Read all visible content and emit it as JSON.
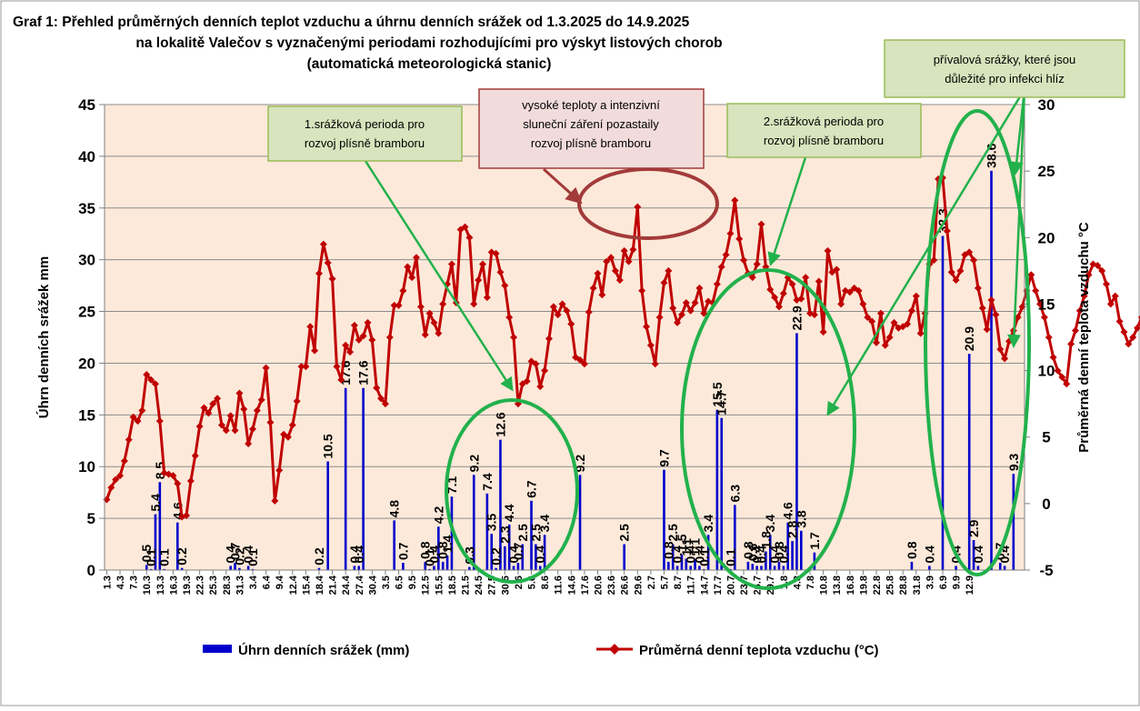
{
  "title_lines": [
    "Graf 1: Přehled průměrných denních teplot vzduchu a úhrnu denních srážek od 1.3.2025 do 14.9.2025",
    "na lokalitě Valečov s vyznačenými periodami rozhodujícími pro výskyt listových chorob",
    "(automatická meteorologická stanic)"
  ],
  "chart_data": {
    "type": "bar+line",
    "y_left": {
      "label": "Úhrn denních srážek mm",
      "min": 0,
      "max": 45,
      "ticks": [
        0,
        5,
        10,
        15,
        20,
        25,
        30,
        35,
        40,
        45
      ]
    },
    "y_right": {
      "label": "Průměrná denní teplota vzduchu °C",
      "min": -5,
      "max": 30,
      "ticks": [
        -5,
        0,
        5,
        10,
        15,
        20,
        25,
        30
      ]
    },
    "x_tick_labels": [
      "1.3",
      "4.3",
      "7.3",
      "10.3",
      "13.3",
      "16.3",
      "19.3",
      "22.3",
      "25.3",
      "28.3",
      "31.3",
      "3.4",
      "6.4",
      "9.4",
      "12.4",
      "15.4",
      "18.4",
      "21.4",
      "24.4",
      "27.4",
      "30.4",
      "3.5",
      "6.5",
      "9.5",
      "12.5",
      "15.5",
      "18.5",
      "21.5",
      "24.5",
      "27.5",
      "30.5",
      "2.6",
      "5.6",
      "8.6",
      "11.6",
      "14.6",
      "17.6",
      "20.6",
      "23.6",
      "26.6",
      "29.6",
      "2.7",
      "5.7",
      "8.7",
      "11.7",
      "14.7",
      "17.7",
      "20.7",
      "23.7",
      "26.7",
      "29.7",
      "1.8",
      "4.8",
      "7.8",
      "10.8",
      "13.8",
      "16.8",
      "19.8",
      "22.8",
      "25.8",
      "28.8",
      "31.8",
      "3.9",
      "6.9",
      "9.9",
      "12.9"
    ],
    "series": [
      {
        "name": "Úhrn denních srážek (mm)",
        "kind": "bar",
        "axis": "left",
        "color": "#0000CC",
        "points": [
          [
            9,
            0.5
          ],
          [
            10,
            0.1
          ],
          [
            11,
            5.4
          ],
          [
            12,
            8.5
          ],
          [
            13,
            0.1
          ],
          [
            16,
            4.6
          ],
          [
            17,
            0.2
          ],
          [
            28,
            0.4
          ],
          [
            29,
            0.7
          ],
          [
            30,
            0.2
          ],
          [
            32,
            0.4
          ],
          [
            33,
            0.1
          ],
          [
            48,
            0.2
          ],
          [
            50,
            10.5
          ],
          [
            54,
            17.6
          ],
          [
            56,
            0.4
          ],
          [
            57,
            0.4
          ],
          [
            58,
            17.6
          ],
          [
            65,
            4.8
          ],
          [
            67,
            0.7
          ],
          [
            72,
            0.8
          ],
          [
            73,
            0.1
          ],
          [
            74,
            0.4
          ],
          [
            75,
            4.2
          ],
          [
            76,
            0.8
          ],
          [
            77,
            1.4
          ],
          [
            78,
            7.1
          ],
          [
            82,
            0.3
          ],
          [
            83,
            9.2
          ],
          [
            86,
            7.4
          ],
          [
            87,
            3.5
          ],
          [
            88,
            0.2
          ],
          [
            89,
            12.6
          ],
          [
            90,
            2.3
          ],
          [
            91,
            4.4
          ],
          [
            92,
            0.4
          ],
          [
            93,
            0.7
          ],
          [
            94,
            2.5
          ],
          [
            96,
            6.7
          ],
          [
            97,
            2.5
          ],
          [
            98,
            0.4
          ],
          [
            99,
            3.4
          ],
          [
            107,
            9.2
          ],
          [
            117,
            2.5
          ],
          [
            126,
            9.7
          ],
          [
            127,
            0.8
          ],
          [
            128,
            2.5
          ],
          [
            129,
            0.4
          ],
          [
            130,
            1.5
          ],
          [
            131,
            1.1
          ],
          [
            132,
            0.4
          ],
          [
            133,
            1.1
          ],
          [
            134,
            0.4
          ],
          [
            135,
            0.1
          ],
          [
            136,
            3.4
          ],
          [
            138,
            15.5
          ],
          [
            139,
            14.7
          ],
          [
            141,
            0.1
          ],
          [
            142,
            6.3
          ],
          [
            145,
            0.8
          ],
          [
            146,
            0.6
          ],
          [
            147,
            0.4
          ],
          [
            148,
            0.4
          ],
          [
            149,
            1.8
          ],
          [
            150,
            3.4
          ],
          [
            151,
            0.4
          ],
          [
            152,
            0.8
          ],
          [
            153,
            0.4
          ],
          [
            154,
            4.6
          ],
          [
            155,
            2.8
          ],
          [
            156,
            22.9
          ],
          [
            157,
            3.8
          ],
          [
            160,
            1.7
          ],
          [
            182,
            0.8
          ],
          [
            186,
            0.4
          ],
          [
            189,
            32.3
          ],
          [
            192,
            0.4
          ],
          [
            195,
            20.9
          ],
          [
            196,
            2.9
          ],
          [
            197,
            0.4
          ],
          [
            200,
            38.6
          ],
          [
            202,
            0.7
          ],
          [
            203,
            0.4
          ],
          [
            205,
            9.3
          ]
        ]
      },
      {
        "name": "Průměrná denní teplota vzduchu (°C)",
        "kind": "line",
        "axis": "right",
        "color": "#C00000",
        "marker": "diamond",
        "values": [
          0.3,
          1.2,
          1.8,
          2.1,
          3.2,
          4.8,
          6.5,
          6.2,
          7.0,
          9.7,
          9.3,
          9.0,
          6.2,
          2.3,
          2.2,
          2.1,
          1.5,
          -1.0,
          -0.9,
          1.7,
          3.6,
          5.8,
          7.2,
          6.8,
          7.5,
          7.9,
          5.9,
          5.5,
          6.6,
          5.5,
          8.3,
          7.1,
          4.5,
          5.6,
          7.0,
          7.8,
          10.2,
          6.1,
          0.2,
          2.5,
          5.2,
          5.0,
          5.9,
          7.7,
          10.3,
          10.3,
          13.3,
          11.5,
          17.3,
          19.5,
          18.1,
          16.9,
          10.3,
          9.3,
          11.9,
          11.4,
          13.4,
          12.3,
          12.6,
          13.6,
          12.3,
          8.7,
          7.9,
          7.5,
          12.5,
          14.9,
          14.9,
          16.0,
          17.8,
          17.0,
          18.5,
          14.8,
          12.7,
          14.3,
          13.6,
          12.8,
          15.0,
          16.5,
          18.0,
          15.1,
          20.6,
          20.8,
          20.0,
          15.0,
          16.8,
          18.0,
          15.5,
          18.9,
          18.8,
          17.4,
          16.4,
          14.0,
          12.5,
          7.5,
          9.0,
          9.2,
          10.7,
          10.5,
          8.8,
          10.0,
          12.4,
          14.8,
          14.2,
          15.0,
          14.5,
          13.5,
          11.0,
          10.8,
          10.5,
          14.4,
          16.2,
          17.3,
          15.7,
          18.2,
          18.5,
          17.5,
          16.8,
          19.0,
          18.2,
          19.1,
          22.3,
          16.0,
          13.3,
          11.9,
          10.5,
          14.0,
          16.6,
          17.5,
          14.7,
          13.6,
          14.2,
          15.1,
          14.5,
          15.1,
          16.2,
          14.3,
          15.2,
          15.1,
          16.5,
          17.8,
          18.7,
          20.3,
          22.8,
          19.9,
          18.3,
          17.3,
          17.0,
          18.0,
          21.0,
          17.8,
          16.1,
          15.5,
          14.8,
          15.8,
          17.0,
          16.5,
          15.3,
          15.4,
          17.0,
          14.3,
          14.2,
          16.7,
          12.9,
          19.0,
          17.4,
          17.6,
          15.0,
          16.0,
          15.9,
          16.2,
          16.0,
          15.0,
          14.0,
          13.7,
          12.1,
          14.3,
          11.9,
          12.5,
          13.6,
          13.2,
          13.3,
          13.5,
          14.5,
          15.6,
          12.8,
          14.3,
          18.0,
          18.3,
          24.4,
          24.5,
          20.5,
          17.4,
          16.8,
          17.5,
          18.7,
          18.9,
          18.3,
          16.2,
          14.7,
          13.1,
          15.3,
          14.2,
          11.6,
          10.9,
          12.2,
          13.0,
          14.0,
          14.8,
          16.0,
          17.2,
          16.0,
          15.0,
          14.0,
          12.5,
          11.0,
          10.0,
          9.5,
          9.0,
          12.0,
          13.0,
          14.5,
          15.6,
          17.2,
          18.0,
          17.9,
          17.5,
          16.5,
          15.0,
          15.6,
          13.7,
          12.9,
          12.0,
          12.5,
          13.2,
          14.0,
          15.0,
          15.9,
          16.5,
          16.0,
          15.1,
          14.0,
          13.5,
          13.2,
          12.4,
          12.0
        ]
      }
    ],
    "legend_position": "bottom",
    "annotations": [
      {
        "text": "vysoké teploty a intenzivní\nsluneční záření pozastaily\nrozvoj plísně bramboru",
        "style": "red-box"
      },
      {
        "text": "1.srážková perioda pro\nrozvoj plísně bramboru",
        "style": "green-box"
      },
      {
        "text": "2.srážková perioda pro\nrozvoj plísně bramboru",
        "style": "green-box"
      },
      {
        "text": "přívalová srážky, které jsou\ndůležité pro infekci hlíz",
        "style": "green-box"
      }
    ]
  }
}
